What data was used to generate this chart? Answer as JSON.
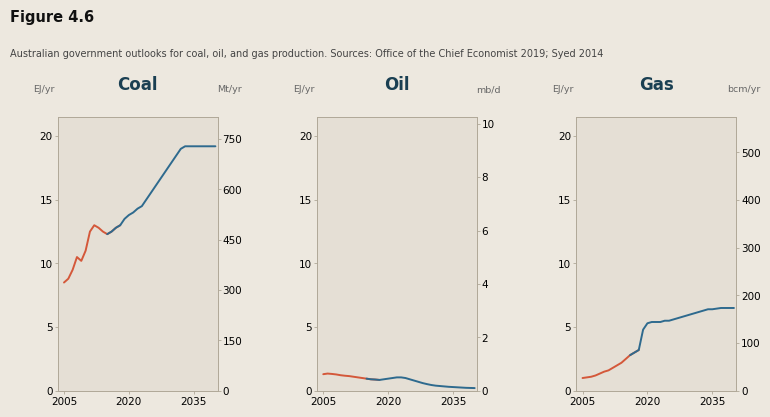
{
  "title": "Figure 4.6",
  "subtitle": "Australian government outlooks for coal, oil, and gas production. Sources: Office of the Chief Economist 2019; Syed 2014",
  "background_color": "#ede8df",
  "plot_bg_color": "#e5dfd5",
  "red_color": "#d4583a",
  "blue_color": "#2e6a8e",
  "coal": {
    "title": "Coal",
    "left_label": "EJ/yr",
    "right_label": "Mt/yr",
    "ylim_left": [
      0,
      21.5
    ],
    "ylim_right": [
      0,
      815
    ],
    "yticks_left": [
      0,
      5,
      10,
      15,
      20
    ],
    "yticks_right": [
      0,
      150,
      300,
      450,
      600,
      750
    ],
    "xlim": [
      2003.5,
      2040.5
    ],
    "xticks": [
      2005,
      2020,
      2035
    ],
    "red_x": [
      2005,
      2006,
      2007,
      2008,
      2009,
      2010,
      2011,
      2012,
      2013,
      2014,
      2015,
      2016,
      2017,
      2018
    ],
    "red_y": [
      8.5,
      8.8,
      9.5,
      10.5,
      10.2,
      11.0,
      12.5,
      13.0,
      12.8,
      12.5,
      12.3,
      12.5,
      12.8,
      13.0
    ],
    "blue_x": [
      2015,
      2016,
      2017,
      2018,
      2019,
      2020,
      2021,
      2022,
      2023,
      2024,
      2025,
      2026,
      2027,
      2028,
      2029,
      2030,
      2031,
      2032,
      2033,
      2034,
      2035,
      2036,
      2037,
      2038,
      2039,
      2040
    ],
    "blue_y": [
      12.3,
      12.5,
      12.8,
      13.0,
      13.5,
      13.8,
      14.0,
      14.3,
      14.5,
      15.0,
      15.5,
      16.0,
      16.5,
      17.0,
      17.5,
      18.0,
      18.5,
      19.0,
      19.2,
      19.2,
      19.2,
      19.2,
      19.2,
      19.2,
      19.2,
      19.2
    ]
  },
  "oil": {
    "title": "Oil",
    "left_label": "EJ/yr",
    "right_label": "mb/d",
    "ylim_left": [
      0,
      21.5
    ],
    "ylim_right": [
      0,
      10.25
    ],
    "yticks_left": [
      0,
      5,
      10,
      15,
      20
    ],
    "yticks_right": [
      0,
      2,
      4,
      6,
      8,
      10
    ],
    "xlim": [
      2003.5,
      2040.5
    ],
    "xticks": [
      2005,
      2020,
      2035
    ],
    "red_x": [
      2005,
      2006,
      2007,
      2008,
      2009,
      2010,
      2011,
      2012,
      2013,
      2014,
      2015,
      2016,
      2017,
      2018
    ],
    "red_y": [
      1.3,
      1.35,
      1.32,
      1.28,
      1.22,
      1.18,
      1.15,
      1.1,
      1.05,
      1.0,
      0.95,
      0.9,
      0.88,
      0.85
    ],
    "blue_x": [
      2015,
      2016,
      2017,
      2018,
      2019,
      2020,
      2021,
      2022,
      2023,
      2024,
      2025,
      2026,
      2027,
      2028,
      2029,
      2030,
      2031,
      2032,
      2033,
      2034,
      2035,
      2036,
      2037,
      2038,
      2039,
      2040
    ],
    "blue_y": [
      0.95,
      0.9,
      0.88,
      0.85,
      0.9,
      0.95,
      1.0,
      1.05,
      1.05,
      1.0,
      0.9,
      0.8,
      0.7,
      0.6,
      0.52,
      0.45,
      0.4,
      0.37,
      0.34,
      0.31,
      0.29,
      0.27,
      0.25,
      0.23,
      0.22,
      0.21
    ]
  },
  "gas": {
    "title": "Gas",
    "left_label": "EJ/yr",
    "right_label": "bcm/yr",
    "ylim_left": [
      0,
      21.5
    ],
    "ylim_right": [
      0,
      574
    ],
    "yticks_left": [
      0,
      5,
      10,
      15,
      20
    ],
    "yticks_right": [
      0,
      100,
      200,
      300,
      400,
      500
    ],
    "xlim": [
      2003.5,
      2040.5
    ],
    "xticks": [
      2005,
      2020,
      2035
    ],
    "red_x": [
      2005,
      2006,
      2007,
      2008,
      2009,
      2010,
      2011,
      2012,
      2013,
      2014,
      2015,
      2016,
      2017,
      2018
    ],
    "red_y": [
      1.0,
      1.05,
      1.1,
      1.2,
      1.35,
      1.5,
      1.6,
      1.8,
      2.0,
      2.2,
      2.5,
      2.8,
      3.0,
      3.2
    ],
    "blue_x": [
      2016,
      2017,
      2018,
      2019,
      2020,
      2021,
      2022,
      2023,
      2024,
      2025,
      2026,
      2027,
      2028,
      2029,
      2030,
      2031,
      2032,
      2033,
      2034,
      2035,
      2036,
      2037,
      2038,
      2039,
      2040
    ],
    "blue_y": [
      2.8,
      3.0,
      3.2,
      4.8,
      5.3,
      5.4,
      5.4,
      5.4,
      5.5,
      5.5,
      5.6,
      5.7,
      5.8,
      5.9,
      6.0,
      6.1,
      6.2,
      6.3,
      6.4,
      6.4,
      6.45,
      6.5,
      6.5,
      6.5,
      6.5
    ]
  }
}
